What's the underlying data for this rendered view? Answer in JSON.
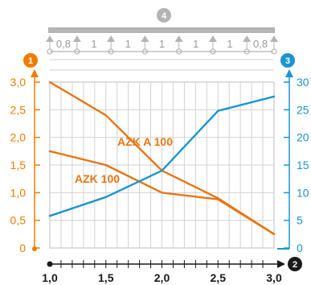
{
  "chart_data": {
    "type": "line",
    "badges": {
      "left_axis": "1",
      "right_axis": "3",
      "x_axis": "2",
      "support_diagram": "4"
    },
    "support_spans": [
      "0,8",
      "1",
      "1",
      "1",
      "1",
      "1",
      "0,8"
    ],
    "x": [
      1.0,
      1.5,
      2.0,
      2.5,
      3.0
    ],
    "x_tick_labels": [
      "1,0",
      "1,5",
      "2,0",
      "2,5",
      "3,0"
    ],
    "xlim": [
      1.0,
      3.0
    ],
    "y_left": {
      "lim": [
        0,
        3.0
      ],
      "ticks": [
        0,
        0.5,
        1.0,
        1.5,
        2.0,
        2.5,
        3.0
      ],
      "tick_labels": [
        "0",
        "0,5",
        "1,0",
        "1,5",
        "2,0",
        "2,5",
        "3,0"
      ],
      "color": "#ef7d00"
    },
    "y_right": {
      "lim": [
        0,
        30
      ],
      "ticks": [
        0,
        5,
        10,
        15,
        20,
        25,
        30
      ],
      "tick_labels": [
        "0",
        "5",
        "10",
        "15",
        "20",
        "25",
        "30"
      ],
      "color": "#1b95d0"
    },
    "grid": true,
    "series": [
      {
        "name": "AZK A 100",
        "axis": "left",
        "color": "#e87511",
        "values": [
          3.0,
          2.4,
          1.4,
          0.9,
          0.25
        ]
      },
      {
        "name": "AZK 100",
        "axis": "left",
        "color": "#e87511",
        "values": [
          1.75,
          1.5,
          1.0,
          0.88,
          0.25
        ]
      },
      {
        "name": "",
        "axis": "right",
        "color": "#1b95d0",
        "values": [
          5.8,
          9.2,
          14.0,
          24.8,
          27.4
        ]
      }
    ]
  }
}
